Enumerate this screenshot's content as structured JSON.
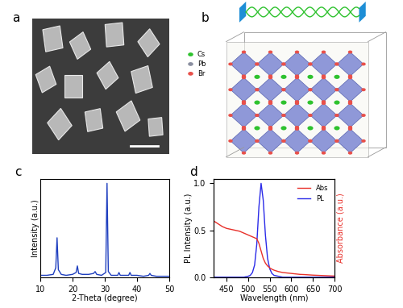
{
  "panels": {
    "a": {
      "label": "a"
    },
    "b": {
      "label": "b",
      "legend": [
        {
          "name": "Cs",
          "color": "#2ec22e"
        },
        {
          "name": "Pb",
          "color": "#8a8fa0"
        },
        {
          "name": "Br",
          "color": "#e8504a"
        }
      ]
    }
  },
  "chart_data": [
    {
      "type": "line",
      "title": "c",
      "x_label": "2-Theta (degree)",
      "y_label": "Intensity (a.u.)",
      "x": [
        10,
        12,
        14,
        14.8,
        15.2,
        15.6,
        16.5,
        18,
        20,
        21.1,
        21.5,
        21.9,
        23,
        25,
        26.5,
        27,
        27.5,
        29,
        30.3,
        30.7,
        31.1,
        32,
        34,
        34.4,
        34.8,
        36,
        37.4,
        37.8,
        38.2,
        40,
        42,
        43.6,
        44,
        44.4,
        46,
        48,
        50
      ],
      "values": [
        0.02,
        0.02,
        0.03,
        0.1,
        0.42,
        0.08,
        0.03,
        0.02,
        0.03,
        0.05,
        0.12,
        0.04,
        0.03,
        0.03,
        0.04,
        0.06,
        0.03,
        0.02,
        0.05,
        1.0,
        0.06,
        0.02,
        0.02,
        0.05,
        0.02,
        0.02,
        0.02,
        0.05,
        0.02,
        0.02,
        0.01,
        0.02,
        0.04,
        0.02,
        0.01,
        0.01,
        0.01
      ],
      "color": "#1f3fbf",
      "xlim": [
        10,
        50
      ],
      "xticks": [
        10,
        20,
        30,
        40,
        50
      ],
      "ylim": [
        0,
        1.05
      ],
      "tick_labels": "x"
    },
    {
      "type": "line",
      "title": "d",
      "x_label": "Wavelength (nm)",
      "y_label": "PL Intensity (a.u.)",
      "y2_label": "Absorbance (a.u.)",
      "x": [
        420,
        430,
        440,
        450,
        460,
        470,
        480,
        490,
        500,
        505,
        510,
        515,
        520,
        525,
        530,
        535,
        540,
        545,
        550,
        555,
        560,
        570,
        580,
        590,
        600,
        610,
        620,
        630,
        640,
        650,
        660,
        670,
        680,
        690,
        700
      ],
      "series": [
        {
          "name": "Abs",
          "color": "#e8302a",
          "axis": "y2",
          "values": [
            0.6,
            0.57,
            0.54,
            0.52,
            0.51,
            0.5,
            0.49,
            0.47,
            0.45,
            0.44,
            0.43,
            0.42,
            0.41,
            0.36,
            0.28,
            0.2,
            0.15,
            0.12,
            0.1,
            0.085,
            0.075,
            0.06,
            0.05,
            0.045,
            0.04,
            0.035,
            0.03,
            0.028,
            0.025,
            0.022,
            0.02,
            0.018,
            0.016,
            0.014,
            0.012
          ]
        },
        {
          "name": "PL",
          "color": "#2a2ae8",
          "values": [
            0,
            0,
            0,
            0,
            0,
            0,
            0,
            0,
            0.01,
            0.02,
            0.05,
            0.13,
            0.35,
            0.75,
            1.0,
            0.82,
            0.45,
            0.2,
            0.09,
            0.04,
            0.02,
            0.01,
            0,
            0,
            0,
            0,
            0,
            0,
            0,
            0,
            0,
            0,
            0,
            0,
            0
          ]
        }
      ],
      "xlim": [
        420,
        700
      ],
      "xticks": [
        450,
        500,
        550,
        600,
        650,
        700
      ],
      "ylim": [
        0,
        1.05
      ],
      "yticks": [
        0.0,
        0.5,
        1.0
      ],
      "y2lim": [
        0,
        1.05
      ],
      "y2ticks": [],
      "legend": "upper right"
    }
  ]
}
